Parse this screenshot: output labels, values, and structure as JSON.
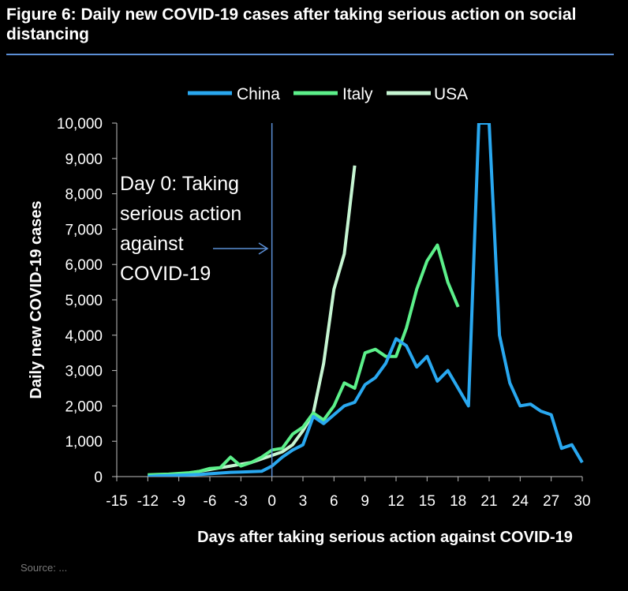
{
  "figure": {
    "title": "Figure 6: Daily new COVID-19 cases  after taking serious action on social distancing",
    "source": "Source: ...",
    "colors": {
      "China": "#29a8f0",
      "Italy": "#5cf08a",
      "USA": "#c6f5d2",
      "background": "#000000",
      "rule": "#5b8fd6"
    }
  },
  "chart_data": {
    "type": "line",
    "title": "Figure 6: Daily new COVID-19 cases  after taking serious action on social distancing",
    "xlabel": "Days after taking serious action against COVID-19",
    "ylabel": "Daily new COVID-19 cases",
    "xlim": [
      -15,
      30
    ],
    "ylim": [
      0,
      10000
    ],
    "xticks": [
      -15,
      -12,
      -9,
      -6,
      -3,
      0,
      3,
      6,
      9,
      12,
      15,
      18,
      21,
      24,
      27,
      30
    ],
    "yticks": [
      0,
      1000,
      2000,
      3000,
      4000,
      5000,
      6000,
      7000,
      8000,
      9000,
      10000
    ],
    "ytick_labels": [
      "0",
      "1,000",
      "2,000",
      "3,000",
      "4,000",
      "5,000",
      "6,000",
      "7,000",
      "8,000",
      "9,000",
      "10,000"
    ],
    "legend": {
      "placement": "top-center",
      "entries": [
        "China",
        "Italy",
        "USA"
      ]
    },
    "annotation": {
      "lines": [
        "Day 0: Taking",
        "serious action",
        "against",
        "COVID-19"
      ],
      "x": 0,
      "vline": true
    },
    "series": [
      {
        "name": "China",
        "color": "#29a8f0",
        "x": [
          -12,
          -11,
          -10,
          -9,
          -8,
          -7,
          -6,
          -5,
          -4,
          -3,
          -2,
          -1,
          0,
          1,
          2,
          3,
          4,
          5,
          6,
          7,
          8,
          9,
          10,
          11,
          12,
          13,
          14,
          15,
          16,
          17,
          18,
          19,
          20,
          21,
          22,
          23,
          24,
          25,
          26,
          27,
          28,
          29,
          30
        ],
        "y": [
          0,
          20,
          30,
          40,
          50,
          60,
          80,
          100,
          120,
          130,
          140,
          150,
          300,
          550,
          750,
          900,
          1700,
          1500,
          1750,
          2000,
          2100,
          2600,
          2800,
          3200,
          3900,
          3700,
          3100,
          3400,
          2700,
          3000,
          2500,
          2000,
          10000,
          10000,
          4000,
          2650,
          2000,
          2050,
          1850,
          1750,
          800,
          900,
          400
        ]
      },
      {
        "name": "Italy",
        "color": "#5cf08a",
        "x": [
          -12,
          -11,
          -10,
          -9,
          -8,
          -7,
          -6,
          -5,
          -4,
          -3,
          -2,
          -1,
          0,
          1,
          2,
          3,
          4,
          5,
          6,
          7,
          8,
          9,
          10,
          11,
          12,
          13,
          14,
          15,
          16,
          17,
          18
        ],
        "y": [
          50,
          60,
          70,
          90,
          110,
          150,
          230,
          250,
          550,
          300,
          400,
          550,
          750,
          800,
          1200,
          1400,
          1800,
          1600,
          2000,
          2650,
          2500,
          3500,
          3600,
          3400,
          3400,
          4200,
          5300,
          6100,
          6550,
          5500,
          4800
        ]
      },
      {
        "name": "USA",
        "color": "#c6f5d2",
        "x": [
          -12,
          -11,
          -10,
          -9,
          -8,
          -7,
          -6,
          -5,
          -4,
          -3,
          -2,
          -1,
          0,
          1,
          2,
          3,
          4,
          5,
          6,
          7,
          8
        ],
        "y": [
          30,
          40,
          50,
          70,
          100,
          150,
          200,
          250,
          300,
          350,
          400,
          500,
          600,
          700,
          900,
          1300,
          1800,
          3200,
          5300,
          6300,
          8800
        ]
      }
    ]
  }
}
